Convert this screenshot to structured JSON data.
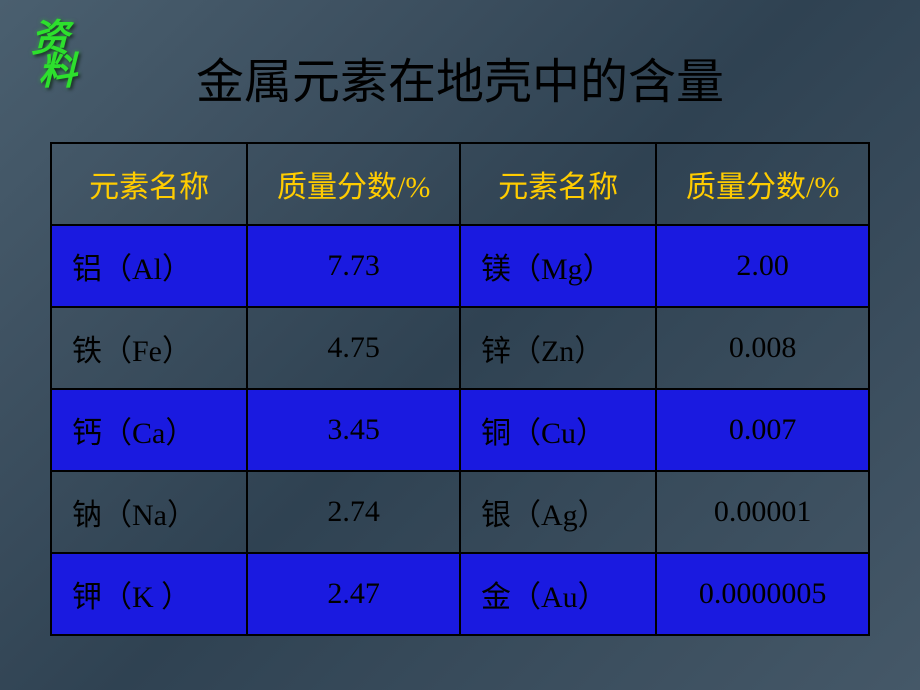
{
  "badge": {
    "char1": "资",
    "char2": "料"
  },
  "title": "金属元素在地壳中的含量",
  "headers": {
    "name1": "元素名称",
    "pct1": "质量分数/%",
    "name2": "元素名称",
    "pct2": "质量分数/%"
  },
  "rows": [
    {
      "n1": "铝（Al）",
      "v1": "7.73",
      "n2": "镁（Mg）",
      "v2": "2.00",
      "highlight": true
    },
    {
      "n1": "铁（Fe）",
      "v1": "4.75",
      "n2": "锌（Zn）",
      "v2": "0.008",
      "highlight": false
    },
    {
      "n1": "钙（Ca）",
      "v1": "3.45",
      "n2": "铜（Cu）",
      "v2": "0.007",
      "highlight": true
    },
    {
      "n1": "钠（Na）",
      "v1": "2.74",
      "n2": "银（Ag）",
      "v2": "0.00001",
      "highlight": false
    },
    {
      "n1": "钾（K ）",
      "v1": "2.47",
      "n2": "金（Au）",
      "v2": "0.0000005",
      "highlight": true
    }
  ],
  "styling": {
    "highlight_bg": "#1a1ae0",
    "header_color": "#ffcc00",
    "text_color": "#000000",
    "border_color": "#000000",
    "badge_color": "#2de02d",
    "title_fontsize": 48,
    "cell_fontsize": 30,
    "col_widths_pct": [
      24,
      26,
      24,
      26
    ],
    "background_gradient": [
      "#4a5f6f",
      "#3d5060",
      "#2f4252",
      "#3a4d5d",
      "#455868"
    ]
  }
}
